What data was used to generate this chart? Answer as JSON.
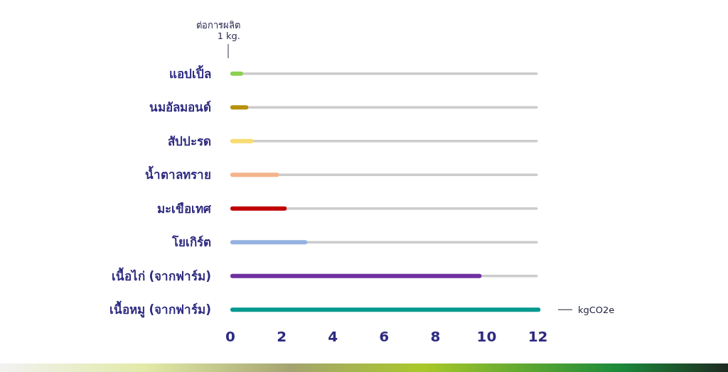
{
  "chart_data": {
    "type": "bar",
    "orientation": "horizontal",
    "categories": [
      "แอปเปิ้ล",
      "นมอัลมอนด์",
      "สัปปะรด",
      "น้ำตาลทราย",
      "มะเขือเทศ",
      "โยเกิร์ต",
      "เนื้อไก่ (จากฟาร์ม)",
      "เนื้อหมู (จากฟาร์ม)"
    ],
    "series": [
      {
        "color": "#cccccc",
        "values": [
          12,
          12,
          12,
          12,
          12,
          12,
          12,
          null
        ]
      },
      {
        "colors": [
          "#8cd050",
          "#b8900a",
          "#f8dc70",
          "#f4b48c",
          "#c00000",
          "#94b2e0",
          "#7030a0",
          "#00998f"
        ],
        "values": [
          0.5,
          0.7,
          0.9,
          1.9,
          2.2,
          3.0,
          9.8,
          12.1
        ]
      }
    ],
    "xlim": [
      0,
      12.2
    ],
    "xticks": [
      0,
      2,
      4,
      6,
      8,
      10,
      12
    ],
    "xlabel": "kgCO2e",
    "annotations": [
      "ต่อการผลิต 1 kg."
    ]
  }
}
